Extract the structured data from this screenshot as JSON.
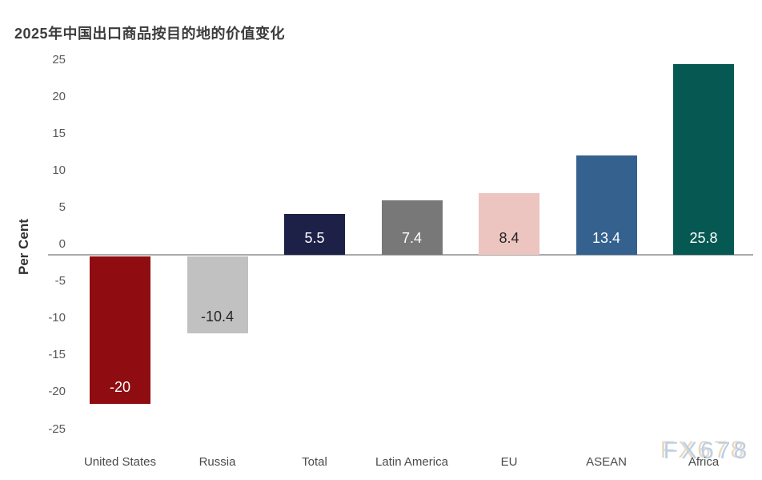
{
  "watermark": "FX678",
  "chart_data": {
    "type": "bar",
    "title": "2025年中国出口商品按目的地的价值变化",
    "ylabel": "Per Cent",
    "xlabel": "",
    "categories": [
      "United States",
      "Russia",
      "Total",
      "Latin America",
      "EU",
      "ASEAN",
      "Africa"
    ],
    "values": [
      -20,
      -10.4,
      5.5,
      7.4,
      8.4,
      13.4,
      25.8
    ],
    "value_labels": [
      "-20",
      "-10.4",
      "5.5",
      "7.4",
      "8.4",
      "13.4",
      "25.8"
    ],
    "bar_colors": [
      "#8f0d11",
      "#c1c1c1",
      "#1d2148",
      "#787878",
      "#ecc5c0",
      "#35618f",
      "#065953"
    ],
    "value_label_colors": [
      "#ffffff",
      "#262626",
      "#ffffff",
      "#ffffff",
      "#262626",
      "#ffffff",
      "#ffffff"
    ],
    "yticks": [
      25,
      20,
      15,
      10,
      5,
      0,
      -5,
      -10,
      -15,
      -20,
      -25
    ],
    "ylim": [
      -25,
      25
    ],
    "grid": false,
    "legend": false,
    "axis_line_color": "#ababab"
  }
}
